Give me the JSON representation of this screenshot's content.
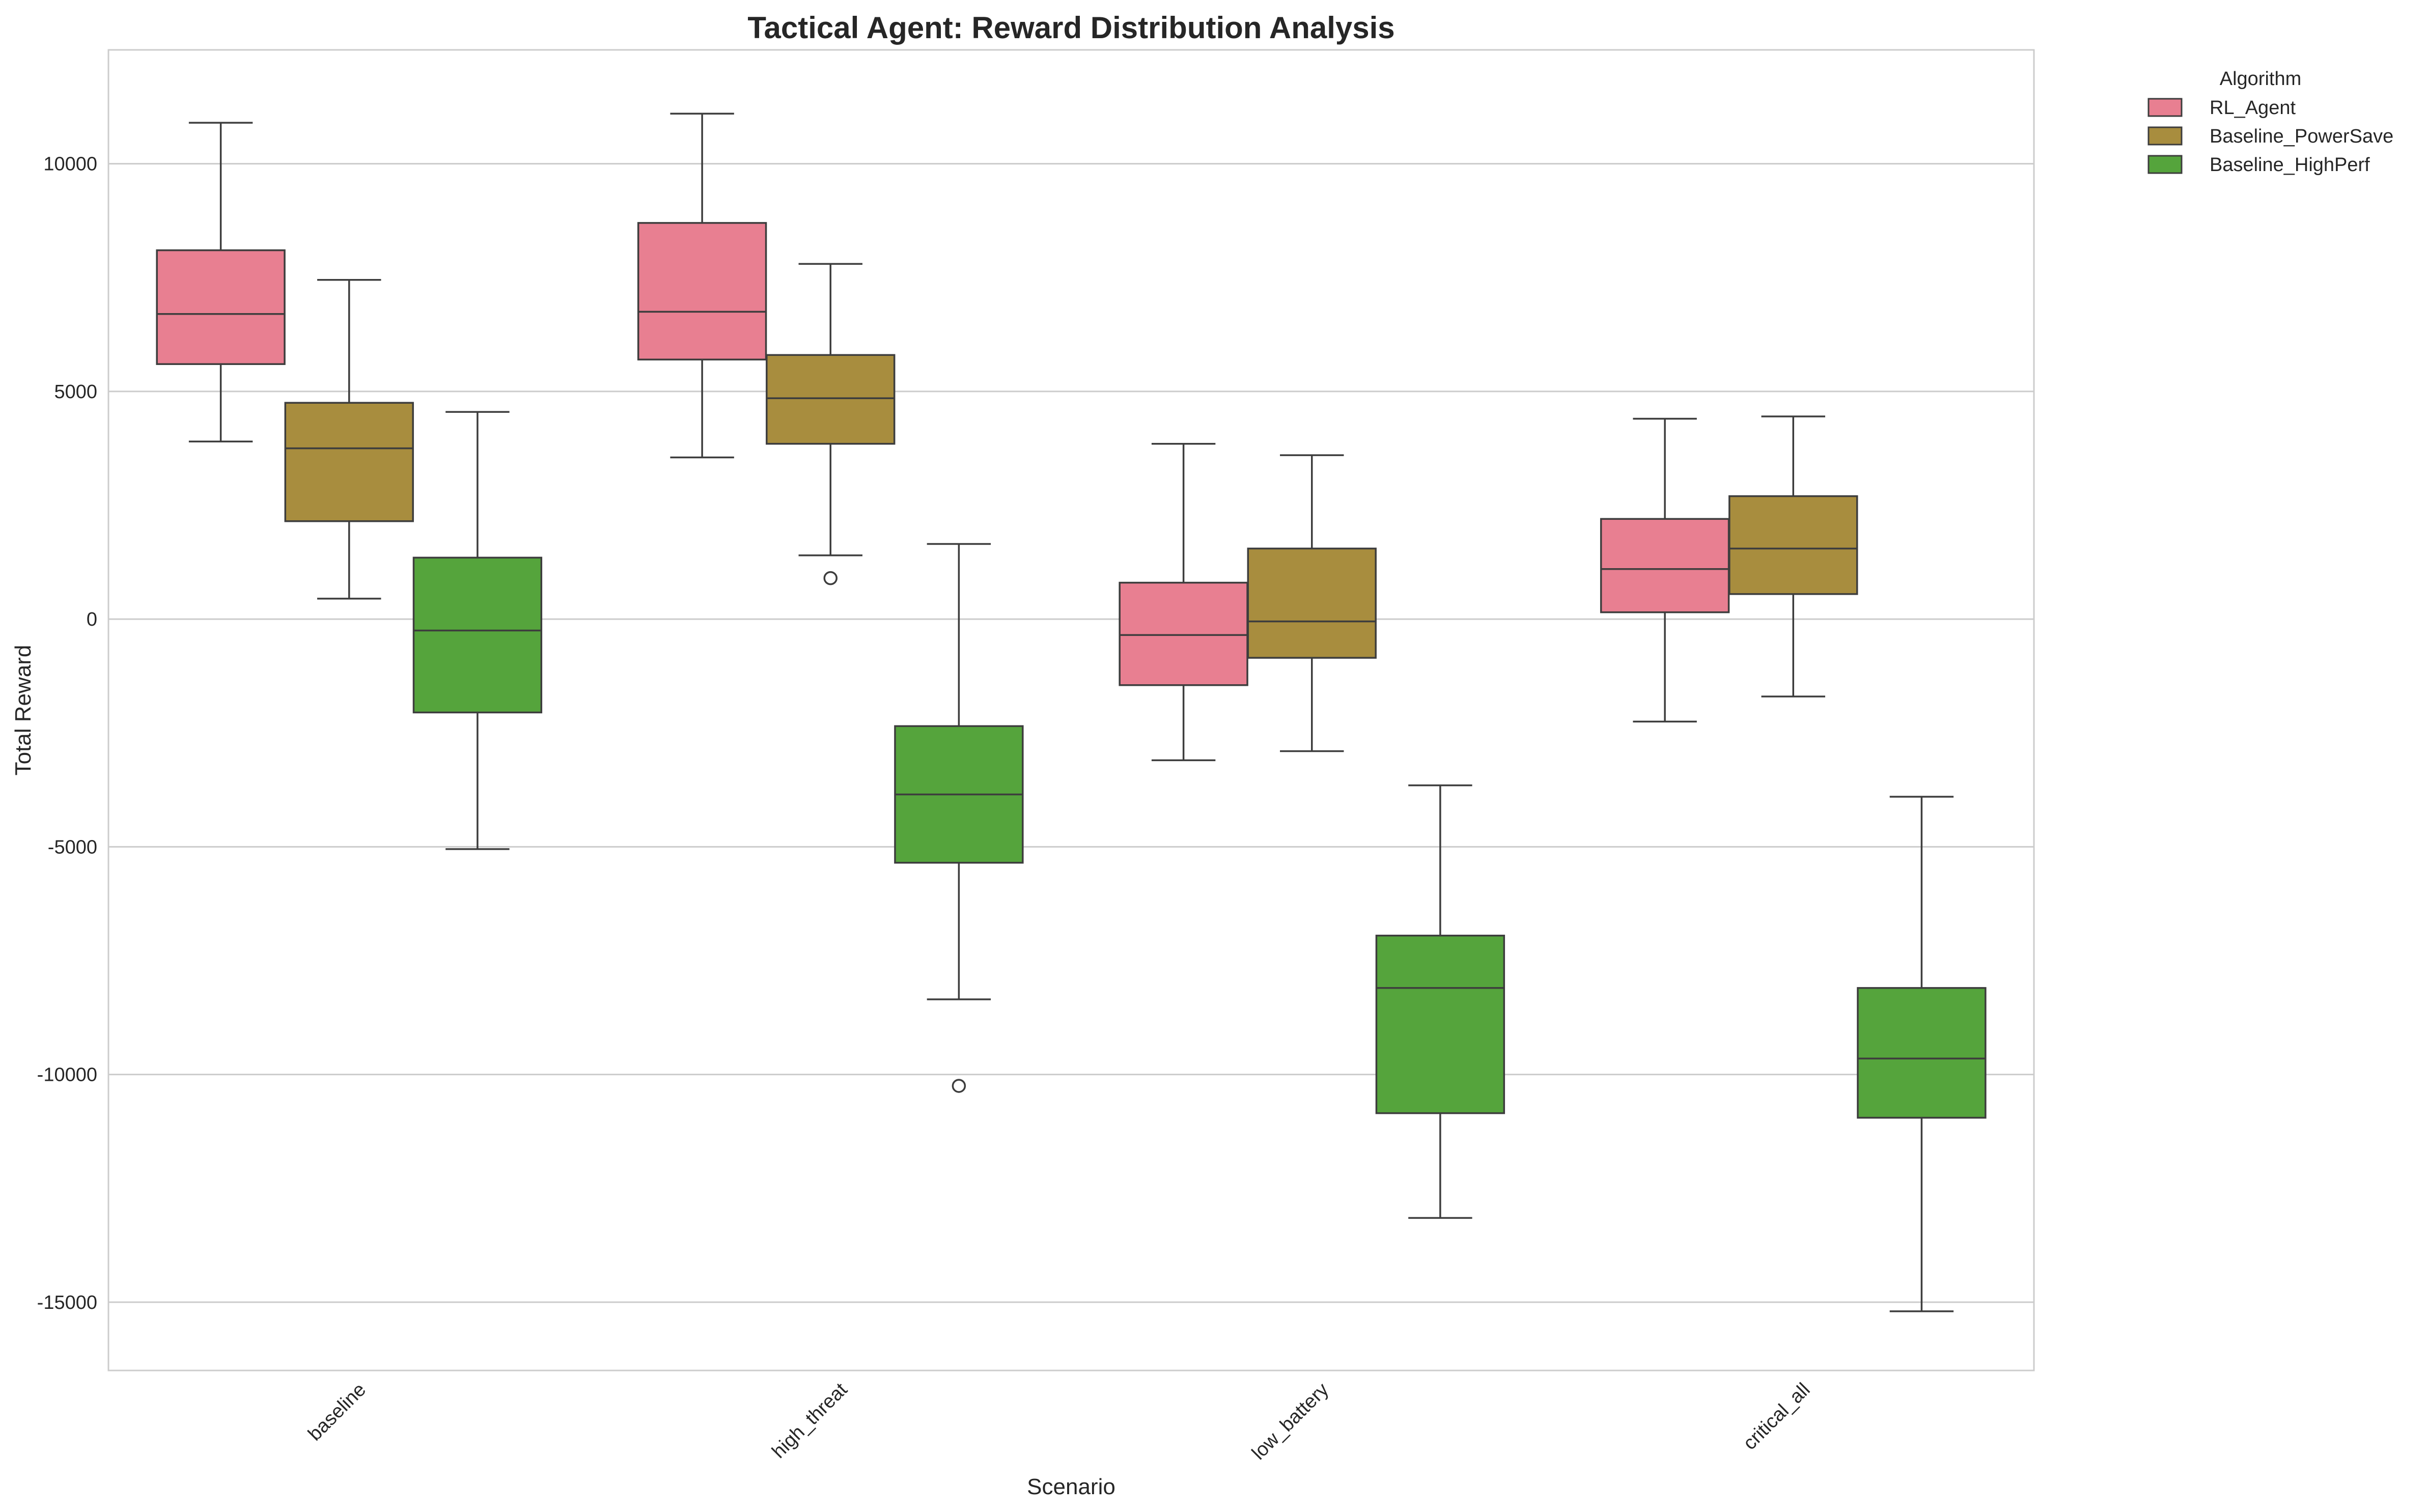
{
  "chart_data": {
    "type": "box",
    "title": "Tactical Agent: Reward Distribution Analysis",
    "xlabel": "Scenario",
    "ylabel": "Total Reward",
    "categories": [
      "baseline",
      "high_threat",
      "low_battery",
      "critical_all"
    ],
    "yticks": [
      10000,
      5000,
      0,
      -5000,
      -10000,
      -15000
    ],
    "ylim": [
      -16500,
      12500
    ],
    "grid": "horizontal",
    "legend": {
      "title": "Algorithm",
      "position": "outside top-right"
    },
    "series": [
      {
        "name": "RL_Agent",
        "color": "#e87f91",
        "boxes": [
          {
            "whisker_low": 3900,
            "q1": 5600,
            "median": 6700,
            "q3": 8100,
            "whisker_high": 10900,
            "outliers": []
          },
          {
            "whisker_low": 3550,
            "q1": 5700,
            "median": 6750,
            "q3": 8700,
            "whisker_high": 11100,
            "outliers": []
          },
          {
            "whisker_low": -3100,
            "q1": -1450,
            "median": -350,
            "q3": 800,
            "whisker_high": 3850,
            "outliers": []
          },
          {
            "whisker_low": -2250,
            "q1": 150,
            "median": 1100,
            "q3": 2200,
            "whisker_high": 4400,
            "outliers": []
          }
        ]
      },
      {
        "name": "Baseline_PowerSave",
        "color": "#a88d3e",
        "boxes": [
          {
            "whisker_low": 450,
            "q1": 2150,
            "median": 3750,
            "q3": 4750,
            "whisker_high": 7450,
            "outliers": []
          },
          {
            "whisker_low": 1400,
            "q1": 3850,
            "median": 4850,
            "q3": 5800,
            "whisker_high": 7800,
            "outliers": [
              900
            ]
          },
          {
            "whisker_low": -2900,
            "q1": -850,
            "median": -50,
            "q3": 1550,
            "whisker_high": 3600,
            "outliers": []
          },
          {
            "whisker_low": -1700,
            "q1": 550,
            "median": 1550,
            "q3": 2700,
            "whisker_high": 4450,
            "outliers": []
          }
        ]
      },
      {
        "name": "Baseline_HighPerf",
        "color": "#55a43c",
        "boxes": [
          {
            "whisker_low": -5050,
            "q1": -2050,
            "median": -250,
            "q3": 1350,
            "whisker_high": 4550,
            "outliers": []
          },
          {
            "whisker_low": -8350,
            "q1": -5350,
            "median": -3850,
            "q3": -2350,
            "whisker_high": 1650,
            "outliers": [
              -10250
            ]
          },
          {
            "whisker_low": -13150,
            "q1": -10850,
            "median": -8100,
            "q3": -6950,
            "whisker_high": -3650,
            "outliers": []
          },
          {
            "whisker_low": -15200,
            "q1": -10950,
            "median": -9650,
            "q3": -8100,
            "whisker_high": -3900,
            "outliers": []
          }
        ]
      }
    ]
  }
}
